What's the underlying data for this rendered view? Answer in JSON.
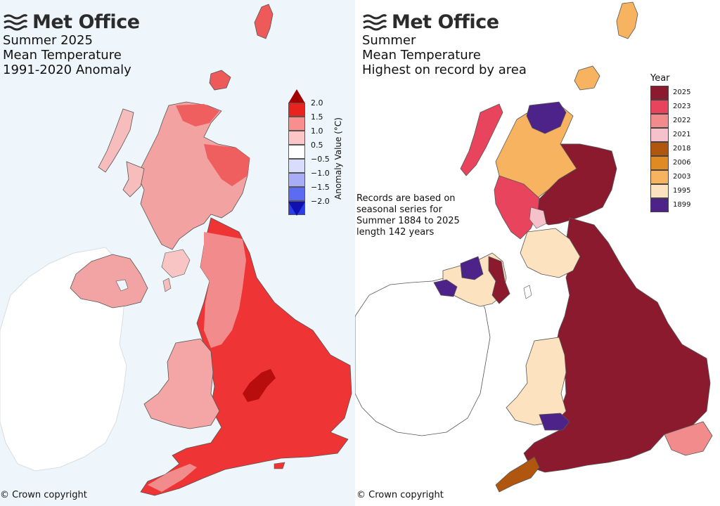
{
  "left": {
    "brand": "Met Office",
    "title_lines": [
      "Summer 2025",
      "Mean Temperature",
      "1991-2020 Anomaly"
    ],
    "colorbar": {
      "axis_label": "Anomaly Value (°C)",
      "ticks": [
        "2.0",
        "1.5",
        "1.0",
        "0.5",
        "−0.5",
        "−1.0",
        "−1.5",
        "−2.0"
      ],
      "colors": [
        "#e8221f",
        "#f98e8e",
        "#fcc6c6",
        "#ffffff",
        "#d9dcfb",
        "#a9adf7",
        "#5c6cf2",
        "#2a3ee8"
      ],
      "cap_top_color": "#a30000",
      "cap_bottom_color": "#1010b0"
    },
    "copyright": "© Crown copyright"
  },
  "right": {
    "brand": "Met Office",
    "title_lines": [
      "Summer",
      "Mean Temperature",
      "Highest on record by area"
    ],
    "legend": {
      "title": "Year",
      "items": [
        {
          "year": "2025",
          "color": "#8b1a2e"
        },
        {
          "year": "2023",
          "color": "#e8445e"
        },
        {
          "year": "2022",
          "color": "#f28b8b"
        },
        {
          "year": "2021",
          "color": "#f7c1cc"
        },
        {
          "year": "2018",
          "color": "#b0560e"
        },
        {
          "year": "2006",
          "color": "#e08a23"
        },
        {
          "year": "2003",
          "color": "#f7b35f"
        },
        {
          "year": "1995",
          "color": "#fde2c0"
        },
        {
          "year": "1899",
          "color": "#4e2389"
        }
      ]
    },
    "note_lines": [
      "Records are based on",
      "seasonal series for",
      "Summer 1884 to 2025",
      "length 142 years"
    ],
    "copyright": "© Crown copyright"
  }
}
